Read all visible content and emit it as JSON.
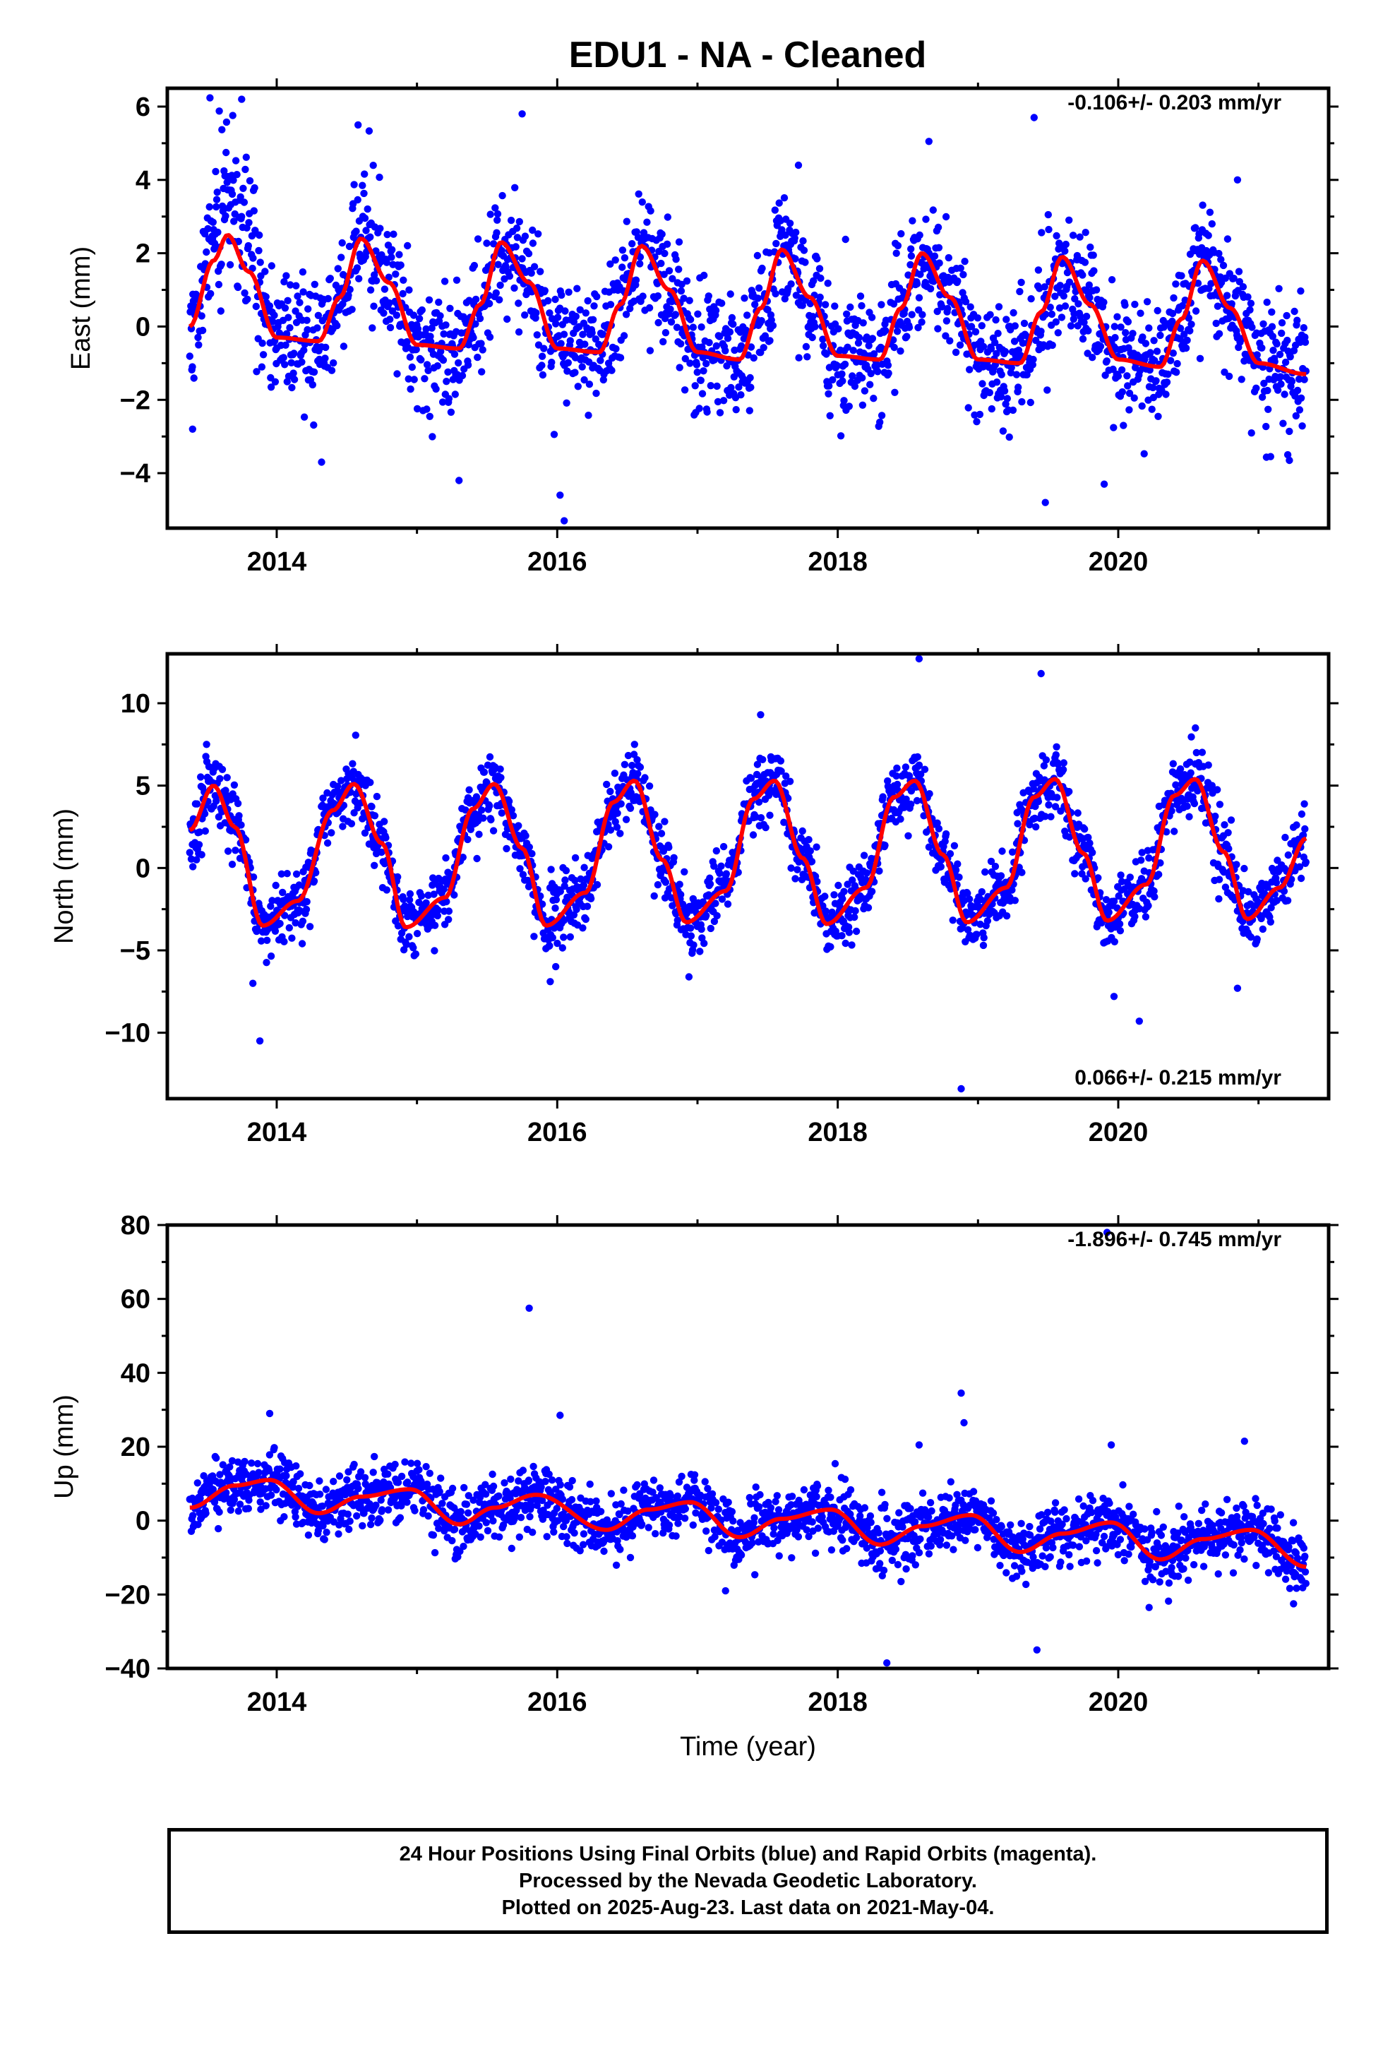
{
  "title": "EDU1  - NA - Cleaned",
  "colors": {
    "data_points": "#0000ff",
    "model_fit": "#ff0000",
    "axes": "#000000"
  },
  "footer": {
    "line1": "24 Hour Positions Using Final Orbits (blue) and Rapid Orbits (magenta).",
    "line2": "Processed by the Nevada Geodetic Laboratory.",
    "line3": "Plotted on 2025-Aug-23. Last data on 2021-May-04."
  },
  "chart_data": [
    {
      "type": "scatter",
      "component": "east",
      "ylabel": "East (mm)",
      "xlabel": "",
      "xlim": [
        2013.22,
        2021.5
      ],
      "ylim": [
        -5.5,
        6.5
      ],
      "xticks": [
        2014,
        2016,
        2018,
        2020
      ],
      "xtick_labels": [
        "2014",
        "2016",
        "2018",
        "2020"
      ],
      "yticks": [
        -4,
        -2,
        0,
        2,
        4,
        6
      ],
      "ytick_labels": [
        "−4",
        "−2",
        "0",
        "2",
        "4",
        "6"
      ],
      "rate_label": "-0.106+/- 0.203 mm/yr",
      "rate_position": "top-right",
      "data_start": 2013.38,
      "data_end": 2021.34,
      "series": [
        {
          "type": "line",
          "role": "model",
          "color": "#ff0000",
          "x": [
            2013.38,
            2013.55,
            2013.65,
            2013.8,
            2014.0,
            2014.3,
            2014.45,
            2014.6,
            2014.8,
            2015.0,
            2015.3,
            2015.45,
            2015.6,
            2015.8,
            2016.0,
            2016.3,
            2016.45,
            2016.6,
            2016.8,
            2017.0,
            2017.3,
            2017.45,
            2017.6,
            2017.8,
            2018.0,
            2018.3,
            2018.45,
            2018.6,
            2018.8,
            2019.0,
            2019.3,
            2019.45,
            2019.6,
            2019.8,
            2020.0,
            2020.3,
            2020.45,
            2020.6,
            2020.8,
            2021.0,
            2021.34
          ],
          "values": [
            0.0,
            1.8,
            2.5,
            1.5,
            -0.3,
            -0.4,
            0.8,
            2.4,
            1.2,
            -0.5,
            -0.6,
            0.6,
            2.3,
            1.2,
            -0.6,
            -0.7,
            0.6,
            2.2,
            1.0,
            -0.7,
            -0.9,
            0.5,
            2.1,
            0.8,
            -0.8,
            -0.9,
            0.5,
            2.0,
            0.8,
            -0.9,
            -1.0,
            0.4,
            1.9,
            0.6,
            -0.9,
            -1.1,
            0.2,
            1.8,
            0.5,
            -1.0,
            -1.3
          ]
        },
        {
          "type": "scatter",
          "role": "daily_positions",
          "color": "#0000ff",
          "seed": 11,
          "noise_sd": 0.85,
          "noisy_periods": [
            {
              "from": 2013.5,
              "to": 2013.85,
              "offset": 1.6
            }
          ],
          "outliers": [
            {
              "x": 2013.75,
              "y": 6.2
            },
            {
              "x": 2014.58,
              "y": 5.5
            },
            {
              "x": 2015.75,
              "y": 5.8
            },
            {
              "x": 2016.05,
              "y": -5.3
            },
            {
              "x": 2018.65,
              "y": 5.05
            },
            {
              "x": 2019.4,
              "y": 5.7
            },
            {
              "x": 2019.48,
              "y": -4.8
            },
            {
              "x": 2019.9,
              "y": -4.3
            },
            {
              "x": 2015.3,
              "y": -4.2
            },
            {
              "x": 2013.4,
              "y": -2.8
            },
            {
              "x": 2014.32,
              "y": -3.7
            },
            {
              "x": 2016.02,
              "y": -4.6
            },
            {
              "x": 2021.22,
              "y": -3.65
            },
            {
              "x": 2020.85,
              "y": 4.0
            },
            {
              "x": 2017.72,
              "y": 4.4
            }
          ]
        }
      ]
    },
    {
      "type": "scatter",
      "component": "north",
      "ylabel": "North (mm)",
      "xlabel": "",
      "xlim": [
        2013.22,
        2021.5
      ],
      "ylim": [
        -14,
        13
      ],
      "xticks": [
        2014,
        2016,
        2018,
        2020
      ],
      "xtick_labels": [
        "2014",
        "2016",
        "2018",
        "2020"
      ],
      "yticks": [
        -10,
        -5,
        0,
        5,
        10
      ],
      "ytick_labels": [
        "−10",
        "−5",
        "0",
        "5",
        "10"
      ],
      "rate_label": "0.066+/- 0.215 mm/yr",
      "rate_position": "bottom-right",
      "data_start": 2013.38,
      "data_end": 2021.34,
      "series": [
        {
          "type": "line",
          "role": "model",
          "color": "#ff0000",
          "x": [
            2013.38,
            2013.55,
            2013.7,
            2013.9,
            2014.15,
            2014.4,
            2014.55,
            2014.75,
            2014.92,
            2015.2,
            2015.4,
            2015.55,
            2015.75,
            2015.92,
            2016.2,
            2016.4,
            2016.55,
            2016.75,
            2016.92,
            2017.2,
            2017.4,
            2017.55,
            2017.75,
            2017.92,
            2018.2,
            2018.4,
            2018.55,
            2018.75,
            2018.92,
            2019.2,
            2019.4,
            2019.55,
            2019.75,
            2019.92,
            2020.2,
            2020.4,
            2020.55,
            2020.75,
            2020.92,
            2021.15,
            2021.34
          ],
          "values": [
            2.3,
            5.0,
            2.5,
            -3.5,
            -2.0,
            3.5,
            5.1,
            1.5,
            -3.6,
            -1.8,
            3.6,
            5.1,
            1.2,
            -3.5,
            -1.5,
            4.0,
            5.3,
            0.5,
            -3.3,
            -1.4,
            4.2,
            5.3,
            0.6,
            -3.4,
            -1.2,
            4.3,
            5.3,
            0.8,
            -3.3,
            -1.2,
            4.3,
            5.4,
            0.9,
            -3.2,
            -1.0,
            4.4,
            5.4,
            1.0,
            -3.1,
            -1.2,
            1.8
          ]
        },
        {
          "type": "scatter",
          "role": "daily_positions",
          "color": "#0000ff",
          "seed": 23,
          "noise_sd": 1.05,
          "noisy_periods": [],
          "outliers": [
            {
              "x": 2018.58,
              "y": 12.7
            },
            {
              "x": 2018.88,
              "y": -13.4
            },
            {
              "x": 2019.45,
              "y": 11.8
            },
            {
              "x": 2013.88,
              "y": -10.5
            },
            {
              "x": 2013.83,
              "y": -7.0
            },
            {
              "x": 2020.15,
              "y": -9.3
            },
            {
              "x": 2019.97,
              "y": -7.8
            },
            {
              "x": 2020.85,
              "y": -7.3
            },
            {
              "x": 2013.5,
              "y": 7.5
            },
            {
              "x": 2017.45,
              "y": 9.3
            },
            {
              "x": 2015.95,
              "y": -6.9
            },
            {
              "x": 2020.55,
              "y": 8.5
            }
          ]
        }
      ]
    },
    {
      "type": "scatter",
      "component": "up",
      "ylabel": "Up (mm)",
      "xlabel": "Time (year)",
      "xlim": [
        2013.22,
        2021.5
      ],
      "ylim": [
        -40,
        80
      ],
      "xticks": [
        2014,
        2016,
        2018,
        2020
      ],
      "xtick_labels": [
        "2014",
        "2016",
        "2018",
        "2020"
      ],
      "yticks": [
        -40,
        -20,
        0,
        20,
        40,
        60,
        80
      ],
      "ytick_labels": [
        "−40",
        "−20",
        "0",
        "20",
        "40",
        "60",
        "80"
      ],
      "rate_label": "-1.896+/- 0.745 mm/yr",
      "rate_position": "top-right",
      "data_start": 2013.38,
      "data_end": 2021.34,
      "series": [
        {
          "type": "line",
          "role": "model",
          "color": "#ff0000",
          "x": [
            2013.38,
            2013.7,
            2013.95,
            2014.3,
            2014.6,
            2014.95,
            2015.3,
            2015.55,
            2015.85,
            2016.35,
            2016.65,
            2016.95,
            2017.3,
            2017.6,
            2017.95,
            2018.3,
            2018.6,
            2018.95,
            2019.3,
            2019.6,
            2019.95,
            2020.3,
            2020.6,
            2020.95,
            2021.34
          ],
          "values": [
            3.5,
            9.5,
            11.0,
            2.0,
            6.5,
            8.5,
            -1.0,
            3.5,
            7.0,
            -2.5,
            3.0,
            5.0,
            -4.5,
            0.5,
            3.0,
            -6.5,
            -1.5,
            1.5,
            -8.5,
            -3.5,
            -0.5,
            -10.5,
            -5.0,
            -2.5,
            -12.5
          ]
        },
        {
          "type": "scatter",
          "role": "daily_positions",
          "color": "#0000ff",
          "seed": 37,
          "noise_sd": 4.2,
          "noisy_periods": [],
          "outliers": [
            {
              "x": 2015.8,
              "y": 57.5
            },
            {
              "x": 2019.92,
              "y": 78.0
            },
            {
              "x": 2018.88,
              "y": 34.5
            },
            {
              "x": 2018.9,
              "y": 26.5
            },
            {
              "x": 2016.02,
              "y": 28.5
            },
            {
              "x": 2013.95,
              "y": 29.0
            },
            {
              "x": 2018.35,
              "y": -38.5
            },
            {
              "x": 2019.42,
              "y": -35.0
            },
            {
              "x": 2020.9,
              "y": 21.5
            },
            {
              "x": 2018.58,
              "y": 20.5
            },
            {
              "x": 2020.22,
              "y": -23.5
            },
            {
              "x": 2021.25,
              "y": -22.5
            },
            {
              "x": 2017.2,
              "y": -19.0
            },
            {
              "x": 2019.95,
              "y": 20.5
            }
          ]
        }
      ]
    }
  ]
}
